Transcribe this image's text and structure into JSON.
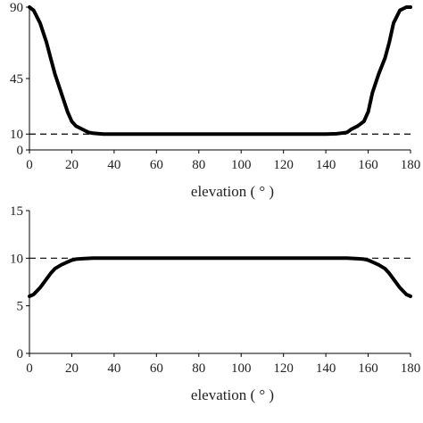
{
  "chart_data": [
    {
      "type": "line",
      "title": "",
      "xlabel": "elevation ( ° )",
      "ylabel": "",
      "xlim": [
        0,
        180
      ],
      "ylim": [
        0,
        90
      ],
      "xticks": [
        0,
        20,
        40,
        60,
        80,
        100,
        120,
        140,
        160,
        180
      ],
      "yticks": [
        0,
        10,
        45,
        90
      ],
      "grid": false,
      "reference_line": {
        "y": 10,
        "style": "dashed"
      },
      "series": [
        {
          "x": [
            0,
            2,
            5,
            8,
            10,
            12,
            15,
            18,
            20,
            22,
            25,
            28,
            30,
            33,
            35,
            40,
            50,
            60,
            70,
            80,
            90,
            100,
            110,
            120,
            130,
            140,
            145,
            147,
            150,
            152,
            155,
            158,
            160,
            162,
            165,
            168,
            170,
            172,
            175,
            178,
            180
          ],
          "values": [
            90,
            88,
            80,
            68,
            58,
            48,
            36,
            24,
            18,
            15,
            13,
            11,
            10.5,
            10.2,
            10,
            10,
            10,
            10,
            10,
            10,
            10,
            10,
            10,
            10,
            10,
            10,
            10.2,
            10.5,
            11,
            13,
            15,
            18,
            24,
            36,
            48,
            58,
            68,
            80,
            88,
            90,
            90
          ]
        }
      ]
    },
    {
      "type": "line",
      "title": "",
      "xlabel": "elevation ( ° )",
      "ylabel": "",
      "xlim": [
        0,
        180
      ],
      "ylim": [
        0,
        15
      ],
      "xticks": [
        0,
        20,
        40,
        60,
        80,
        100,
        120,
        140,
        160,
        180
      ],
      "yticks": [
        0,
        5,
        10,
        15
      ],
      "grid": false,
      "reference_line": {
        "y": 10,
        "style": "dashed"
      },
      "series": [
        {
          "x": [
            0,
            2,
            5,
            8,
            10,
            12,
            15,
            18,
            20,
            22,
            25,
            30,
            40,
            60,
            80,
            100,
            120,
            140,
            150,
            155,
            158,
            160,
            162,
            165,
            168,
            170,
            172,
            175,
            178,
            180
          ],
          "values": [
            6.0,
            6.2,
            6.9,
            7.8,
            8.4,
            8.9,
            9.3,
            9.6,
            9.8,
            9.9,
            9.95,
            10,
            10,
            10,
            10,
            10,
            10,
            10,
            10,
            9.95,
            9.9,
            9.8,
            9.6,
            9.3,
            8.9,
            8.4,
            7.8,
            6.9,
            6.2,
            6.0
          ]
        }
      ]
    }
  ]
}
